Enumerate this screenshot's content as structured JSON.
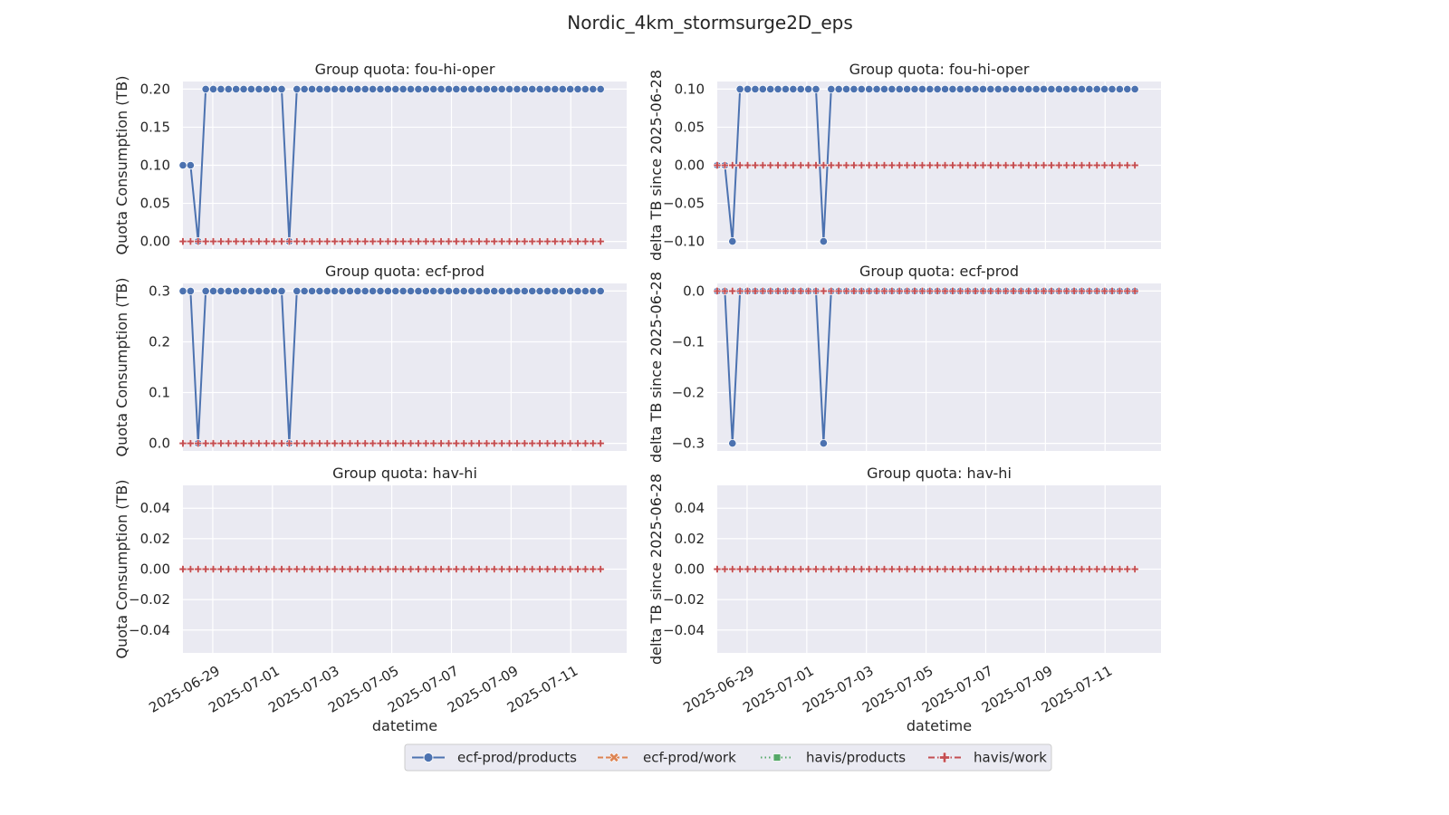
{
  "figure": {
    "suptitle": "Nordic_4km_stormsurge2D_eps"
  },
  "colors": {
    "panel_bg": "#EAEAF2",
    "grid": "#FFFFFF",
    "ecf_prod_products": "#4C72B0",
    "ecf_prod_work": "#DD8452",
    "havis_products": "#55A868",
    "havis_work": "#C44E52"
  },
  "legend": {
    "placement": "bottom-center",
    "entries": [
      {
        "label": "ecf-prod/products",
        "color": "#4C72B0",
        "marker": "circle",
        "dash": "solid"
      },
      {
        "label": "ecf-prod/work",
        "color": "#DD8452",
        "marker": "x-filled",
        "dash": "dashed"
      },
      {
        "label": "havis/products",
        "color": "#55A868",
        "marker": "square",
        "dash": "dotted"
      },
      {
        "label": "havis/work",
        "color": "#C44E52",
        "marker": "plus-filled",
        "dash": "dashdot"
      }
    ]
  },
  "chart_data": [
    {
      "type": "line",
      "row": 0,
      "col": 0,
      "title": "Group quota: fou-hi-oper",
      "ylabel": "Quota Consumption (TB)",
      "xlabel": "",
      "ylim": [
        -0.01,
        0.21
      ],
      "yticks": [
        0.0,
        0.05,
        0.1,
        0.15,
        0.2
      ],
      "ytick_labels": [
        "0.00",
        "0.05",
        "0.10",
        "0.15",
        "0.20"
      ],
      "blue_values": [
        0.1,
        0.1,
        0.0,
        0.2,
        0.2,
        0.2,
        0.2,
        0.2,
        0.2,
        0.2,
        0.2,
        0.2,
        0.2,
        0.2,
        0.0,
        0.2
      ],
      "blue_rest": 0.2,
      "zero_series_value": 0,
      "grid": true
    },
    {
      "type": "line",
      "row": 0,
      "col": 1,
      "title": "Group quota: fou-hi-oper",
      "ylabel": "delta TB since 2025-06-28",
      "xlabel": "",
      "ylim": [
        -0.11,
        0.11
      ],
      "yticks": [
        -0.1,
        -0.05,
        0.0,
        0.05,
        0.1
      ],
      "ytick_labels": [
        "−0.10",
        "−0.05",
        "0.00",
        "0.05",
        "0.10"
      ],
      "blue_values": [
        0.0,
        0.0,
        -0.1,
        0.1,
        0.1,
        0.1,
        0.1,
        0.1,
        0.1,
        0.1,
        0.1,
        0.1,
        0.1,
        0.1,
        -0.1,
        0.1
      ],
      "blue_rest": 0.1,
      "zero_series_value": 0,
      "grid": true
    },
    {
      "type": "line",
      "row": 1,
      "col": 0,
      "title": "Group quota: ecf-prod",
      "ylabel": "Quota Consumption (TB)",
      "xlabel": "",
      "ylim": [
        -0.015,
        0.315
      ],
      "yticks": [
        0.0,
        0.1,
        0.2,
        0.3
      ],
      "ytick_labels": [
        "0.0",
        "0.1",
        "0.2",
        "0.3"
      ],
      "blue_values": [
        0.3,
        0.3,
        0.0,
        0.3,
        0.3,
        0.3,
        0.3,
        0.3,
        0.3,
        0.3,
        0.3,
        0.3,
        0.3,
        0.3,
        0.0,
        0.3
      ],
      "blue_rest": 0.3,
      "zero_series_value": 0,
      "grid": true
    },
    {
      "type": "line",
      "row": 1,
      "col": 1,
      "title": "Group quota: ecf-prod",
      "ylabel": "delta TB since 2025-06-28",
      "xlabel": "",
      "ylim": [
        -0.315,
        0.015
      ],
      "yticks": [
        -0.3,
        -0.2,
        -0.1,
        0.0
      ],
      "ytick_labels": [
        "−0.3",
        "−0.2",
        "−0.1",
        "0.0"
      ],
      "blue_values": [
        0.0,
        0.0,
        -0.3,
        0.0,
        0.0,
        0.0,
        0.0,
        0.0,
        0.0,
        0.0,
        0.0,
        0.0,
        0.0,
        0.0,
        -0.3,
        0.0
      ],
      "blue_rest": 0.0,
      "zero_series_value": 0,
      "grid": true
    },
    {
      "type": "line",
      "row": 2,
      "col": 0,
      "title": "Group quota: hav-hi",
      "ylabel": "Quota Consumption (TB)",
      "xlabel": "datetime",
      "ylim": [
        -0.055,
        0.055
      ],
      "yticks": [
        -0.04,
        -0.02,
        0.0,
        0.02,
        0.04
      ],
      "ytick_labels": [
        "−0.04",
        "−0.02",
        "0.00",
        "0.02",
        "0.04"
      ],
      "blue_values": [],
      "blue_rest": null,
      "zero_series_value": 0,
      "grid": true
    },
    {
      "type": "line",
      "row": 2,
      "col": 1,
      "title": "Group quota: hav-hi",
      "ylabel": "delta TB since 2025-06-28",
      "xlabel": "datetime",
      "ylim": [
        -0.055,
        0.055
      ],
      "yticks": [
        -0.04,
        -0.02,
        0.0,
        0.02,
        0.04
      ],
      "ytick_labels": [
        "−0.04",
        "−0.02",
        "0.00",
        "0.02",
        "0.04"
      ],
      "blue_values": [],
      "blue_rest": null,
      "zero_series_value": 0,
      "grid": true
    }
  ],
  "x_axis": {
    "start": "2025-06-28T00:00",
    "end": "2025-07-12T00:00",
    "n_points": 56,
    "xlim": [
      "2025-06-28T00:00",
      "2025-07-12T21:00"
    ],
    "ticks": [
      "2025-06-29",
      "2025-07-01",
      "2025-07-03",
      "2025-07-05",
      "2025-07-07",
      "2025-07-09",
      "2025-07-11"
    ]
  }
}
